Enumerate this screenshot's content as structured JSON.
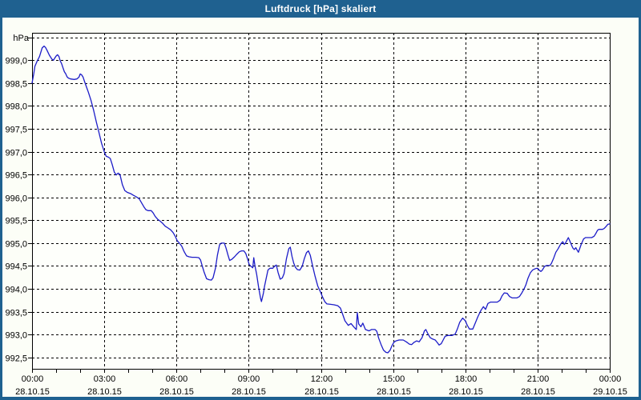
{
  "window": {
    "title": "Luftdruck [hPa] skaliert"
  },
  "colors": {
    "titlebar": "#1F6190",
    "frame": "#1F6190",
    "background": "#FCFEF7",
    "plot_background": "#FEFFFB",
    "line": "#1C1CC8",
    "grid": "#000000",
    "text": "#000000"
  },
  "chart_data": {
    "type": "line",
    "title": "Luftdruck [hPa] skaliert",
    "ylabel": "hPa",
    "xlabel": "",
    "grid": "dashed",
    "legend_position": "none",
    "xlim": [
      0,
      24
    ],
    "ylim": [
      992.25,
      999.6
    ],
    "y_axis": {
      "unit": "hPa",
      "ticks": [
        {
          "v": 999.5,
          "label": ""
        },
        {
          "v": 999.0,
          "label": "999,0"
        },
        {
          "v": 998.5,
          "label": "998,5"
        },
        {
          "v": 998.0,
          "label": "998,0"
        },
        {
          "v": 997.5,
          "label": "997,5"
        },
        {
          "v": 997.0,
          "label": "997,0"
        },
        {
          "v": 996.5,
          "label": "996,5"
        },
        {
          "v": 996.0,
          "label": "996,0"
        },
        {
          "v": 995.5,
          "label": "995,5"
        },
        {
          "v": 995.0,
          "label": "995,0"
        },
        {
          "v": 994.5,
          "label": "994,5"
        },
        {
          "v": 994.0,
          "label": "994,0"
        },
        {
          "v": 993.5,
          "label": "993,5"
        },
        {
          "v": 993.0,
          "label": "993,0"
        },
        {
          "v": 992.5,
          "label": "992,5"
        }
      ]
    },
    "x_axis": {
      "minor_tick_hours": 1,
      "major": [
        {
          "t": 0,
          "time": "00:00",
          "date": "28.10.15"
        },
        {
          "t": 3,
          "time": "03:00",
          "date": "28.10.15"
        },
        {
          "t": 6,
          "time": "06:00",
          "date": "28.10.15"
        },
        {
          "t": 9,
          "time": "09:00",
          "date": "28.10.15"
        },
        {
          "t": 12,
          "time": "12:00",
          "date": "28.10.15"
        },
        {
          "t": 15,
          "time": "15:00",
          "date": "28.10.15"
        },
        {
          "t": 18,
          "time": "18:00",
          "date": "28.10.15"
        },
        {
          "t": 21,
          "time": "21:00",
          "date": "28.10.15"
        },
        {
          "t": 24,
          "time": "00:00",
          "date": "29.10.15"
        }
      ]
    },
    "series_name": "Luftdruck",
    "points": [
      [
        0.0,
        998.5
      ],
      [
        0.07,
        998.7
      ],
      [
        0.12,
        998.87
      ],
      [
        0.22,
        998.99
      ],
      [
        0.31,
        999.08
      ],
      [
        0.42,
        999.27
      ],
      [
        0.5,
        999.31
      ],
      [
        0.56,
        999.28
      ],
      [
        0.62,
        999.22
      ],
      [
        0.72,
        999.11
      ],
      [
        0.83,
        999.02
      ],
      [
        0.89,
        999.0
      ],
      [
        0.95,
        999.05
      ],
      [
        1.0,
        999.09
      ],
      [
        1.06,
        999.12
      ],
      [
        1.12,
        999.08
      ],
      [
        1.17,
        998.99
      ],
      [
        1.23,
        998.92
      ],
      [
        1.28,
        998.84
      ],
      [
        1.34,
        998.75
      ],
      [
        1.4,
        998.7
      ],
      [
        1.45,
        998.64
      ],
      [
        1.51,
        998.61
      ],
      [
        1.6,
        998.59
      ],
      [
        1.75,
        998.58
      ],
      [
        1.86,
        998.59
      ],
      [
        1.95,
        998.63
      ],
      [
        2.0,
        998.7
      ],
      [
        2.06,
        998.68
      ],
      [
        2.12,
        998.63
      ],
      [
        2.17,
        998.55
      ],
      [
        2.23,
        998.46
      ],
      [
        2.34,
        998.3
      ],
      [
        2.45,
        998.12
      ],
      [
        2.56,
        997.9
      ],
      [
        2.67,
        997.65
      ],
      [
        2.78,
        997.42
      ],
      [
        2.89,
        997.18
      ],
      [
        3.0,
        997.0
      ],
      [
        3.08,
        996.9
      ],
      [
        3.17,
        996.88
      ],
      [
        3.25,
        996.85
      ],
      [
        3.33,
        996.72
      ],
      [
        3.42,
        996.55
      ],
      [
        3.5,
        996.49
      ],
      [
        3.58,
        996.53
      ],
      [
        3.65,
        996.5
      ],
      [
        3.75,
        996.28
      ],
      [
        3.85,
        996.15
      ],
      [
        3.95,
        996.11
      ],
      [
        4.1,
        996.08
      ],
      [
        4.2,
        996.05
      ],
      [
        4.33,
        996.01
      ],
      [
        4.45,
        995.97
      ],
      [
        4.55,
        995.88
      ],
      [
        4.65,
        995.79
      ],
      [
        4.73,
        995.73
      ],
      [
        4.82,
        995.71
      ],
      [
        4.95,
        995.71
      ],
      [
        5.03,
        995.66
      ],
      [
        5.12,
        995.58
      ],
      [
        5.22,
        995.52
      ],
      [
        5.32,
        995.48
      ],
      [
        5.43,
        995.43
      ],
      [
        5.53,
        995.37
      ],
      [
        5.65,
        995.33
      ],
      [
        5.76,
        995.29
      ],
      [
        5.86,
        995.23
      ],
      [
        5.95,
        995.15
      ],
      [
        6.03,
        995.05
      ],
      [
        6.12,
        995.0
      ],
      [
        6.22,
        994.93
      ],
      [
        6.32,
        994.81
      ],
      [
        6.42,
        994.72
      ],
      [
        6.52,
        994.7
      ],
      [
        6.65,
        994.69
      ],
      [
        6.8,
        994.69
      ],
      [
        6.93,
        994.68
      ],
      [
        7.0,
        994.63
      ],
      [
        7.07,
        994.5
      ],
      [
        7.15,
        994.36
      ],
      [
        7.25,
        994.22
      ],
      [
        7.35,
        994.2
      ],
      [
        7.45,
        994.19
      ],
      [
        7.52,
        994.24
      ],
      [
        7.62,
        994.45
      ],
      [
        7.7,
        994.73
      ],
      [
        7.79,
        994.96
      ],
      [
        7.86,
        995.0
      ],
      [
        7.99,
        995.0
      ],
      [
        8.06,
        994.89
      ],
      [
        8.14,
        994.74
      ],
      [
        8.21,
        994.62
      ],
      [
        8.31,
        994.65
      ],
      [
        8.41,
        994.7
      ],
      [
        8.51,
        994.76
      ],
      [
        8.61,
        994.81
      ],
      [
        8.7,
        994.83
      ],
      [
        8.8,
        994.83
      ],
      [
        8.88,
        994.77
      ],
      [
        8.96,
        994.64
      ],
      [
        9.02,
        994.53
      ],
      [
        9.1,
        994.49
      ],
      [
        9.17,
        994.46
      ],
      [
        9.21,
        994.68
      ],
      [
        9.26,
        994.5
      ],
      [
        9.33,
        994.32
      ],
      [
        9.41,
        994.04
      ],
      [
        9.49,
        993.8
      ],
      [
        9.53,
        993.72
      ],
      [
        9.61,
        993.9
      ],
      [
        9.66,
        994.06
      ],
      [
        9.72,
        994.21
      ],
      [
        9.8,
        994.41
      ],
      [
        9.88,
        994.45
      ],
      [
        10.0,
        994.45
      ],
      [
        10.07,
        994.49
      ],
      [
        10.15,
        994.52
      ],
      [
        10.22,
        994.36
      ],
      [
        10.31,
        994.21
      ],
      [
        10.4,
        994.24
      ],
      [
        10.47,
        994.33
      ],
      [
        10.57,
        994.66
      ],
      [
        10.67,
        994.88
      ],
      [
        10.73,
        994.91
      ],
      [
        10.8,
        994.71
      ],
      [
        10.87,
        994.56
      ],
      [
        10.94,
        994.47
      ],
      [
        11.02,
        994.42
      ],
      [
        11.12,
        994.41
      ],
      [
        11.22,
        994.49
      ],
      [
        11.31,
        994.66
      ],
      [
        11.4,
        994.79
      ],
      [
        11.48,
        994.83
      ],
      [
        11.56,
        994.73
      ],
      [
        11.66,
        994.49
      ],
      [
        11.76,
        994.27
      ],
      [
        11.87,
        994.06
      ],
      [
        12.0,
        993.91
      ],
      [
        12.06,
        993.83
      ],
      [
        12.16,
        993.72
      ],
      [
        12.25,
        993.67
      ],
      [
        12.4,
        993.66
      ],
      [
        12.55,
        993.65
      ],
      [
        12.7,
        993.63
      ],
      [
        12.81,
        993.58
      ],
      [
        12.9,
        993.45
      ],
      [
        13.0,
        993.3
      ],
      [
        13.14,
        993.2
      ],
      [
        13.25,
        993.24
      ],
      [
        13.36,
        993.17
      ],
      [
        13.47,
        993.11
      ],
      [
        13.51,
        993.48
      ],
      [
        13.57,
        993.23
      ],
      [
        13.66,
        993.17
      ],
      [
        13.74,
        993.25
      ],
      [
        13.85,
        993.11
      ],
      [
        14.0,
        993.08
      ],
      [
        14.1,
        993.11
      ],
      [
        14.25,
        993.11
      ],
      [
        14.32,
        993.07
      ],
      [
        14.4,
        992.92
      ],
      [
        14.5,
        992.78
      ],
      [
        14.6,
        992.66
      ],
      [
        14.7,
        992.61
      ],
      [
        14.78,
        992.6
      ],
      [
        14.87,
        992.65
      ],
      [
        14.95,
        992.75
      ],
      [
        15.03,
        992.83
      ],
      [
        15.12,
        992.86
      ],
      [
        15.25,
        992.88
      ],
      [
        15.42,
        992.88
      ],
      [
        15.55,
        992.84
      ],
      [
        15.67,
        992.79
      ],
      [
        15.77,
        992.78
      ],
      [
        15.87,
        992.83
      ],
      [
        15.98,
        992.86
      ],
      [
        16.08,
        992.84
      ],
      [
        16.2,
        992.93
      ],
      [
        16.3,
        993.08
      ],
      [
        16.36,
        993.11
      ],
      [
        16.44,
        993.02
      ],
      [
        16.54,
        992.93
      ],
      [
        16.65,
        992.9
      ],
      [
        16.75,
        992.88
      ],
      [
        16.84,
        992.82
      ],
      [
        16.91,
        992.77
      ],
      [
        17.0,
        992.8
      ],
      [
        17.08,
        992.88
      ],
      [
        17.16,
        992.96
      ],
      [
        17.28,
        992.98
      ],
      [
        17.45,
        992.98
      ],
      [
        17.58,
        993.01
      ],
      [
        17.67,
        993.12
      ],
      [
        17.77,
        993.27
      ],
      [
        17.89,
        993.36
      ],
      [
        18.0,
        993.3
      ],
      [
        18.08,
        993.2
      ],
      [
        18.17,
        993.12
      ],
      [
        18.31,
        993.12
      ],
      [
        18.42,
        993.26
      ],
      [
        18.52,
        993.39
      ],
      [
        18.64,
        993.52
      ],
      [
        18.75,
        993.61
      ],
      [
        18.84,
        993.55
      ],
      [
        18.94,
        993.68
      ],
      [
        19.05,
        993.71
      ],
      [
        19.33,
        993.71
      ],
      [
        19.44,
        993.75
      ],
      [
        19.53,
        993.85
      ],
      [
        19.62,
        993.91
      ],
      [
        19.74,
        993.9
      ],
      [
        19.84,
        993.83
      ],
      [
        19.95,
        993.8
      ],
      [
        20.14,
        993.8
      ],
      [
        20.25,
        993.83
      ],
      [
        20.35,
        993.91
      ],
      [
        20.44,
        994.0
      ],
      [
        20.51,
        994.08
      ],
      [
        20.6,
        994.23
      ],
      [
        20.7,
        994.35
      ],
      [
        20.79,
        994.41
      ],
      [
        20.9,
        994.44
      ],
      [
        21.0,
        994.45
      ],
      [
        21.08,
        994.4
      ],
      [
        21.14,
        994.38
      ],
      [
        21.2,
        994.41
      ],
      [
        21.29,
        994.49
      ],
      [
        21.38,
        994.51
      ],
      [
        21.52,
        994.51
      ],
      [
        21.58,
        994.56
      ],
      [
        21.67,
        994.67
      ],
      [
        21.76,
        994.8
      ],
      [
        21.86,
        994.88
      ],
      [
        21.92,
        994.94
      ],
      [
        21.99,
        995.0
      ],
      [
        22.05,
        995.03
      ],
      [
        22.11,
        994.97
      ],
      [
        22.16,
        995.0
      ],
      [
        22.22,
        995.06
      ],
      [
        22.28,
        995.12
      ],
      [
        22.34,
        995.05
      ],
      [
        22.41,
        994.96
      ],
      [
        22.47,
        994.89
      ],
      [
        22.53,
        994.86
      ],
      [
        22.59,
        994.9
      ],
      [
        22.64,
        994.85
      ],
      [
        22.7,
        994.8
      ],
      [
        22.81,
        994.97
      ],
      [
        22.91,
        995.09
      ],
      [
        22.99,
        995.12
      ],
      [
        23.1,
        995.12
      ],
      [
        23.25,
        995.12
      ],
      [
        23.35,
        995.15
      ],
      [
        23.42,
        995.21
      ],
      [
        23.49,
        995.28
      ],
      [
        23.55,
        995.3
      ],
      [
        23.7,
        995.3
      ],
      [
        23.77,
        995.32
      ],
      [
        23.84,
        995.36
      ],
      [
        23.92,
        995.41
      ],
      [
        24.0,
        995.42
      ]
    ]
  }
}
